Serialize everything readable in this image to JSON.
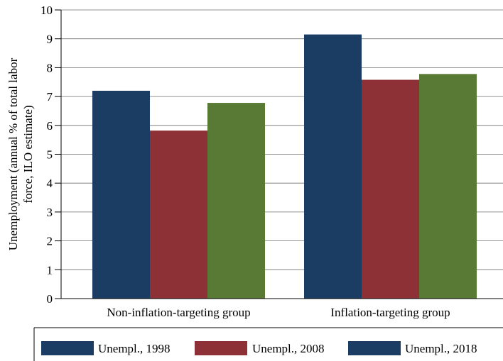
{
  "chart_data": {
    "type": "bar",
    "title": "",
    "xlabel": "",
    "ylabel": "Unemployment (annual % of total labor force, ILO estimate)",
    "ylabel_lines": [
      "Unemployment (annual % of total labor",
      "force, ILO estimate)"
    ],
    "categories": [
      "Non-inflation-targeting group",
      "Inflation-targeting group"
    ],
    "series": [
      {
        "name": "Unempl., 1998",
        "values": [
          7.2,
          9.15
        ],
        "color": "#1c3d63"
      },
      {
        "name": "Unempl., 2008",
        "values": [
          5.82,
          7.58
        ],
        "color": "#8e3136"
      },
      {
        "name": "Unempl., 2018",
        "values": [
          6.78,
          7.78
        ],
        "color": "#587a35",
        "legend_color": "#1c3d63"
      }
    ],
    "ylim": [
      0,
      10
    ],
    "yticks": [
      "0",
      "1",
      "2",
      "3",
      "4",
      "5",
      "6",
      "7",
      "8",
      "9",
      "10"
    ],
    "grid": true,
    "legend_position": "bottom"
  }
}
